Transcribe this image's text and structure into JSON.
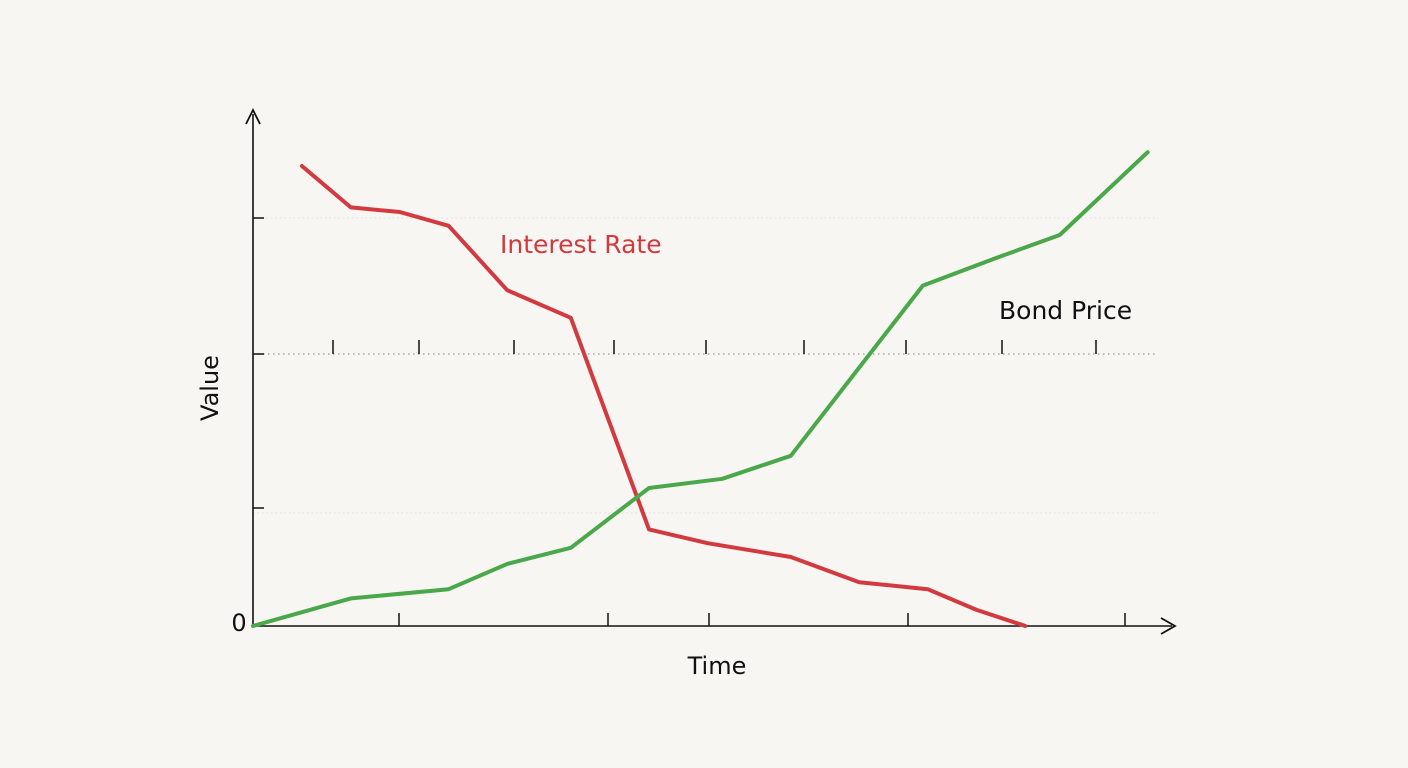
{
  "chart_data": {
    "type": "line",
    "title": "",
    "xlabel": "Time",
    "ylabel": "Value",
    "y_tick_labels": [
      "0"
    ],
    "xlim": [
      0,
      18
    ],
    "ylim": [
      0,
      10.5
    ],
    "grid": true,
    "legend": "inline-labels",
    "series": [
      {
        "name": "Interest Rate",
        "color": "#d23a3f",
        "x": [
          1,
          2,
          3,
          4,
          5.2,
          6.5,
          8.1,
          9.3,
          11,
          12.4,
          13.8,
          14.8,
          15.8
        ],
        "y": [
          10,
          9.1,
          9.0,
          8.7,
          7.3,
          6.7,
          2.1,
          1.8,
          1.5,
          0.95,
          0.8,
          0.35,
          0
        ]
      },
      {
        "name": "Bond Price",
        "color": "#4aa84a",
        "x": [
          0,
          2,
          4,
          5.2,
          6.5,
          8.1,
          9.6,
          11,
          13.7,
          15.2,
          16.5,
          18.3
        ],
        "y": [
          0,
          0.6,
          0.8,
          1.35,
          1.7,
          3.0,
          3.2,
          3.7,
          7.4,
          8.0,
          8.5,
          10.3
        ]
      }
    ]
  }
}
